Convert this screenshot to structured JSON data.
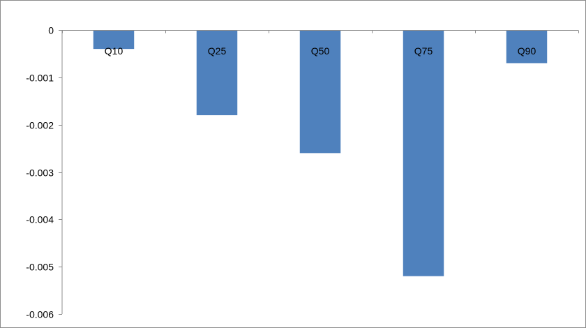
{
  "chart_data": {
    "type": "bar",
    "categories": [
      "Q10",
      "Q25",
      "Q50",
      "Q75",
      "Q90"
    ],
    "values": [
      -0.0004,
      -0.0018,
      -0.0026,
      -0.0052,
      -0.0007
    ],
    "ylim": [
      -0.006,
      0
    ],
    "yticks": [
      0,
      -0.001,
      -0.002,
      -0.003,
      -0.004,
      -0.005,
      -0.006
    ],
    "ytick_labels": [
      "0",
      "-0.001",
      "-0.002",
      "-0.003",
      "-0.004",
      "-0.005",
      "-0.006"
    ],
    "category_label_position": "at zero line",
    "grid": false,
    "legend": "none",
    "bar_color": "#4f81bd",
    "axis_color": "#8c8c8c"
  }
}
